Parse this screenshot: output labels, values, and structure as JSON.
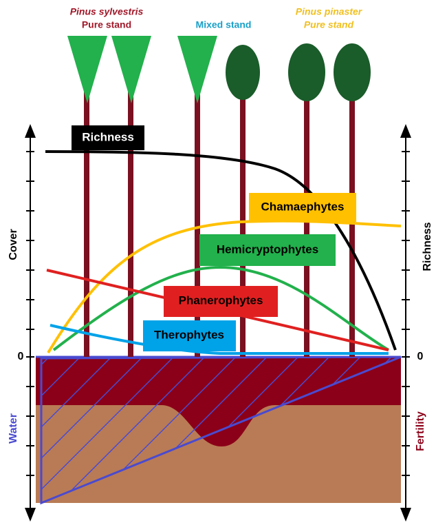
{
  "header": {
    "left_species": "Pinus sylvestris",
    "left_stand": "Pure stand",
    "middle_stand": "Mixed stand",
    "right_species": "Pinus pinaster",
    "right_stand": "Pure stand"
  },
  "labels": {
    "richness": "Richness",
    "chamaephytes": "Chamaephytes",
    "hemicryptophytes": "Hemicryptophytes",
    "phanerophytes": "Phanerophytes",
    "therophytes": "Therophytes"
  },
  "axes": {
    "left_title": "Cover",
    "right_title": "Richness",
    "left_zero": "0",
    "right_zero": "0",
    "bottom_left": "Water",
    "bottom_right": "Fertility"
  }
}
